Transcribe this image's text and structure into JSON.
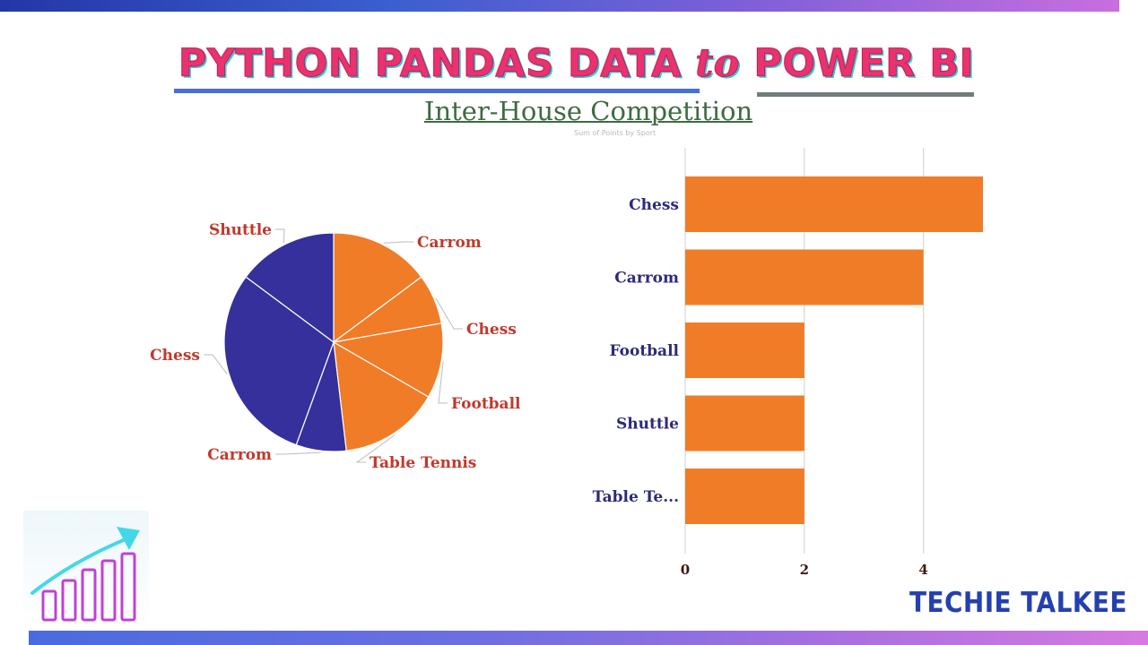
{
  "header": {
    "title_part1": "PYTHON PANDAS DATA ",
    "title_to": "to",
    "title_part2": " POWER BI",
    "subtitle": "Inter-House Competition",
    "chart_title": "Sum of Points by Sport"
  },
  "brand": "TECHIE TALKEE",
  "colors": {
    "orange": "#f07c28",
    "indigo": "#35309c",
    "label_red": "#c0392b",
    "label_navy": "#2d2a7a"
  },
  "decoration": {
    "icon": "growth-chart-arrow-icon"
  },
  "chart_data": [
    {
      "type": "pie",
      "slices": [
        {
          "label": "Carrom",
          "value": 4,
          "color": "#f07c28"
        },
        {
          "label": "Chess",
          "value": 2,
          "color": "#f07c28"
        },
        {
          "label": "Football",
          "value": 3,
          "color": "#f07c28"
        },
        {
          "label": "Table Tennis",
          "value": 4,
          "color": "#f07c28"
        },
        {
          "label": "Carrom",
          "value": 2,
          "color": "#35309c"
        },
        {
          "label": "Chess",
          "value": 8,
          "color": "#35309c"
        },
        {
          "label": "Shuttle",
          "value": 4,
          "color": "#35309c"
        }
      ],
      "legend": "none"
    },
    {
      "type": "bar",
      "orientation": "horizontal",
      "title": "Sum of Points by Sport",
      "categories": [
        "Chess",
        "Carrom",
        "Football",
        "Shuttle",
        "Table Te..."
      ],
      "values": [
        5,
        4,
        2,
        2,
        2
      ],
      "color": "#f07c28",
      "xlim": [
        0,
        5
      ],
      "xticks": [
        "0",
        "2",
        "4"
      ],
      "grid": "vertical"
    }
  ]
}
